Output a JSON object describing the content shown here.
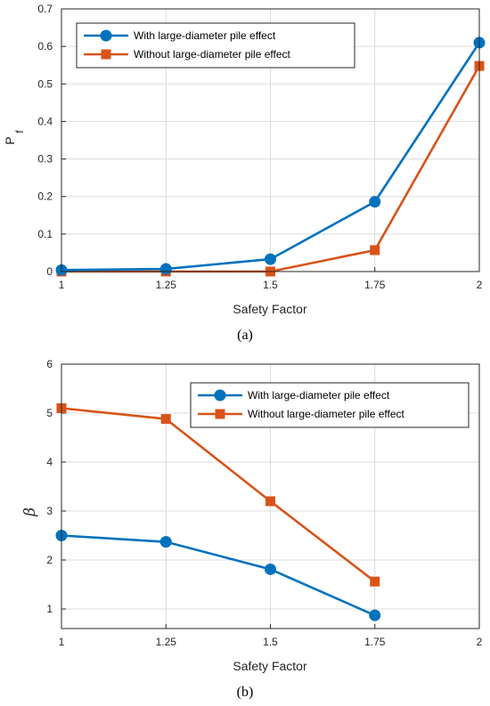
{
  "chart_data": [
    {
      "type": "line",
      "panel_label": "(a)",
      "xlabel": "Safety Factor",
      "ylabel": "P",
      "ylabel_subscript": "f",
      "xlim": [
        1,
        2
      ],
      "ylim": [
        0,
        0.7
      ],
      "xticks": [
        "1",
        "1.25",
        "1.5",
        "1.75",
        "2"
      ],
      "yticks": [
        "0",
        "0.1",
        "0.2",
        "0.3",
        "0.4",
        "0.5",
        "0.6",
        "0.7"
      ],
      "grid": true,
      "legend_position": "top-left",
      "series": [
        {
          "name": "With large-diameter pile effect",
          "marker": "circle",
          "color": "#0072BD",
          "x": [
            1,
            1.25,
            1.5,
            1.75,
            2
          ],
          "values": [
            0.004,
            0.007,
            0.033,
            0.186,
            0.61
          ]
        },
        {
          "name": "Without large-diameter pile effect",
          "marker": "square",
          "color": "#D95319",
          "x": [
            1,
            1.25,
            1.5,
            1.75,
            2
          ],
          "values": [
            0.0,
            0.0,
            0.0,
            0.057,
            0.548
          ]
        }
      ]
    },
    {
      "type": "line",
      "panel_label": "(b)",
      "xlabel": "Safety Factor",
      "ylabel": "β",
      "xlim": [
        1,
        2
      ],
      "ylim": [
        0.6,
        6
      ],
      "xticks": [
        "1",
        "1.25",
        "1.5",
        "1.75",
        "2"
      ],
      "yticks": [
        "1",
        "2",
        "3",
        "4",
        "5",
        "6"
      ],
      "grid": true,
      "legend_position": "top-right",
      "series": [
        {
          "name": "With large-diameter pile effect",
          "marker": "circle",
          "color": "#0072BD",
          "x": [
            1,
            1.25,
            1.5,
            1.75
          ],
          "values": [
            2.5,
            2.37,
            1.81,
            0.87
          ]
        },
        {
          "name": "Without large-diameter pile effect",
          "marker": "square",
          "color": "#D95319",
          "x": [
            1,
            1.25,
            1.5,
            1.75
          ],
          "values": [
            5.1,
            4.88,
            3.2,
            1.56
          ]
        }
      ]
    }
  ]
}
